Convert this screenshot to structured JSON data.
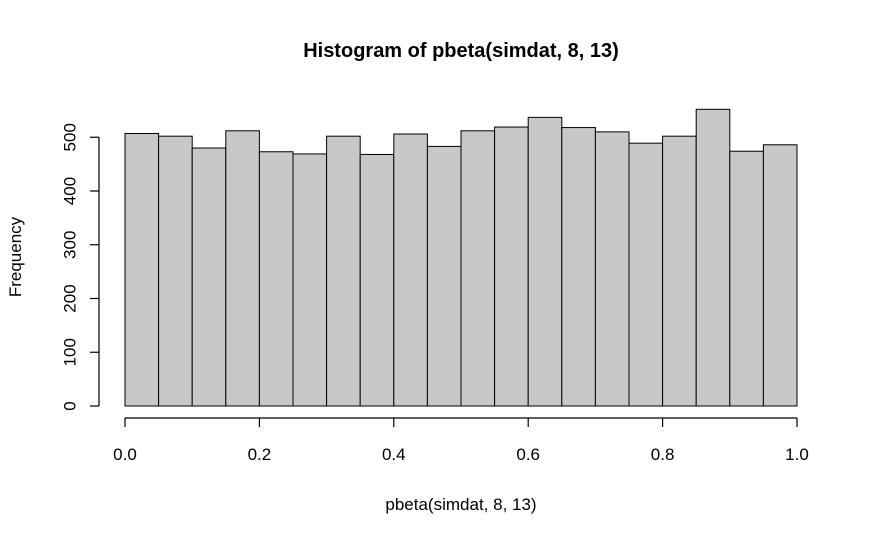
{
  "chart_data": {
    "type": "bar",
    "title": "Histogram of pbeta(simdat, 8, 13)",
    "xlabel": "pbeta(simdat, 8, 13)",
    "ylabel": "Frequency",
    "bin_edges": [
      0.0,
      0.05,
      0.1,
      0.15,
      0.2,
      0.25,
      0.3,
      0.35,
      0.4,
      0.45,
      0.5,
      0.55,
      0.6,
      0.65,
      0.7,
      0.75,
      0.8,
      0.85,
      0.9,
      0.95,
      1.0
    ],
    "values": [
      507,
      502,
      480,
      512,
      473,
      469,
      502,
      468,
      506,
      483,
      512,
      519,
      537,
      518,
      510,
      489,
      502,
      552,
      474,
      486
    ],
    "xlim": [
      0,
      1
    ],
    "ylim": [
      0,
      552
    ],
    "x_ticks": [
      0.0,
      0.2,
      0.4,
      0.6,
      0.8,
      1.0
    ],
    "x_tick_labels": [
      "0.0",
      "0.2",
      "0.4",
      "0.6",
      "0.8",
      "1.0"
    ],
    "y_ticks": [
      0,
      100,
      200,
      300,
      400,
      500
    ],
    "y_tick_labels": [
      "0",
      "100",
      "200",
      "300",
      "400",
      "500"
    ],
    "bar_color": "#c8c8c8",
    "grid": false,
    "legend": "none"
  }
}
